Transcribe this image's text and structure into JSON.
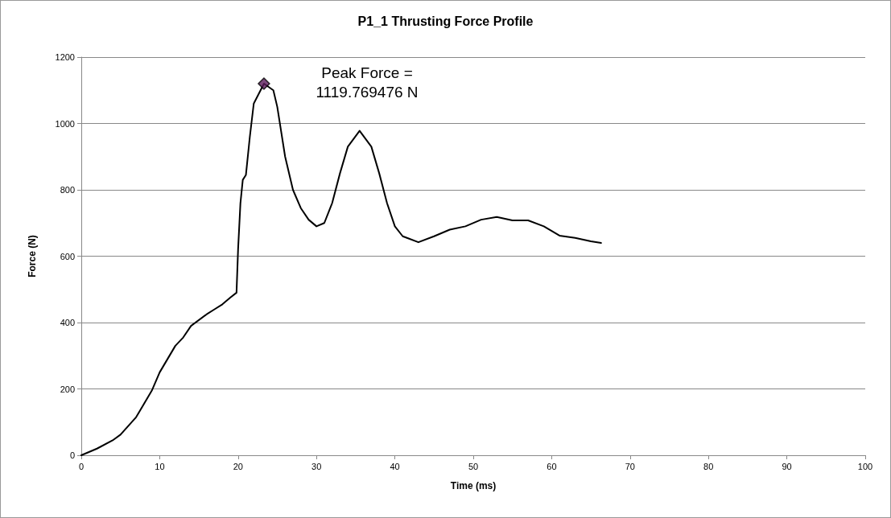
{
  "chart_data": {
    "type": "line",
    "title": "P1_1 Thrusting Force Profile",
    "xlabel": "Time (ms)",
    "ylabel": "Force (N)",
    "xlim": [
      0,
      100
    ],
    "xticks": [
      0,
      10,
      20,
      30,
      40,
      50,
      60,
      70,
      80,
      90,
      100
    ],
    "ylim": [
      0,
      1200
    ],
    "yticks": [
      0,
      200,
      400,
      600,
      800,
      1000,
      1200
    ],
    "grid": "y",
    "series": [
      {
        "color": "#000000",
        "marker": "none",
        "line_style": "solid",
        "x": [
          0,
          2,
          4,
          5,
          7,
          9,
          10,
          12,
          13,
          14,
          16,
          17,
          18,
          19,
          19.8,
          20.0,
          20.3,
          20.6,
          21,
          21.5,
          22,
          23.3,
          24.5,
          25,
          26,
          27,
          28,
          29,
          30,
          31,
          32,
          33,
          34,
          35.5,
          37,
          38,
          39,
          40,
          41,
          43,
          45,
          47,
          49,
          51,
          53,
          55,
          57,
          59,
          61,
          63,
          65,
          66.3
        ],
        "values": [
          0,
          20,
          45,
          62,
          115,
          195,
          250,
          330,
          355,
          390,
          425,
          440,
          455,
          475,
          490,
          620,
          760,
          830,
          845,
          960,
          1060,
          1120,
          1100,
          1050,
          900,
          800,
          745,
          710,
          690,
          700,
          760,
          850,
          930,
          978,
          930,
          850,
          760,
          690,
          660,
          642,
          660,
          680,
          690,
          710,
          718,
          708,
          708,
          690,
          662,
          655,
          645,
          640
        ]
      },
      {
        "type": "scatter",
        "color": "#5a1a5a",
        "marker": "diamond",
        "x": [
          23.3
        ],
        "values": [
          1120
        ]
      }
    ],
    "annotations": [
      "Peak Force =\n1119.769476 N"
    ]
  }
}
